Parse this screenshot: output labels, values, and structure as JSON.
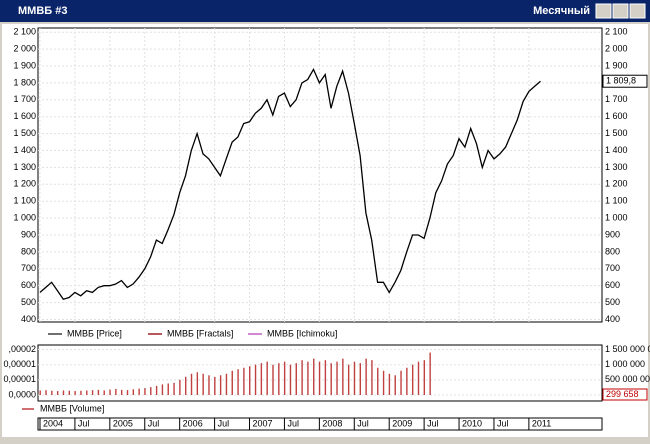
{
  "window": {
    "title": "ММВБ #3",
    "period": "Месячный"
  },
  "chart_data": {
    "type": "line",
    "x_labels": [
      "2004",
      "Jul",
      "2005",
      "Jul",
      "2006",
      "Jul",
      "2007",
      "Jul",
      "2008",
      "Jul",
      "2009",
      "Jul",
      "2010",
      "Jul",
      "2011"
    ],
    "series": [
      {
        "name": "ММВБ [Price]",
        "color": "#000000",
        "values": [
          560,
          590,
          620,
          570,
          520,
          530,
          560,
          540,
          570,
          560,
          590,
          600,
          600,
          610,
          630,
          590,
          610,
          650,
          700,
          770,
          870,
          850,
          930,
          1020,
          1150,
          1250,
          1400,
          1500,
          1380,
          1350,
          1300,
          1250,
          1350,
          1450,
          1480,
          1560,
          1570,
          1620,
          1650,
          1700,
          1610,
          1720,
          1740,
          1660,
          1700,
          1800,
          1820,
          1880,
          1800,
          1850,
          1650,
          1780,
          1870,
          1740,
          1560,
          1370,
          1030,
          870,
          620,
          620,
          560,
          620,
          690,
          800,
          900,
          900,
          880,
          1000,
          1150,
          1220,
          1320,
          1370,
          1470,
          1420,
          1530,
          1440,
          1300,
          1400,
          1350,
          1380,
          1420,
          1500,
          1580,
          1690,
          1750,
          1780,
          1810
        ]
      }
    ],
    "legend": [
      "ММВБ [Price]",
      "ММВБ [Fractals]",
      "ММВБ [Ichimoku]"
    ],
    "legend_colors": [
      "#404040",
      "#a02020",
      "#c060c0"
    ],
    "last_value_label": "1 809,8",
    "ylim": [
      385,
      2125
    ],
    "yticks": [
      {
        "value": 2100,
        "label": "2 100"
      },
      {
        "value": 2000,
        "label": "2 000"
      },
      {
        "value": 1900,
        "label": "1 900"
      },
      {
        "value": 1800,
        "label": "1 800"
      },
      {
        "value": 1700,
        "label": "1 700"
      },
      {
        "value": 1600,
        "label": "1 600"
      },
      {
        "value": 1500,
        "label": "1 500"
      },
      {
        "value": 1400,
        "label": "1 400"
      },
      {
        "value": 1300,
        "label": "1 300"
      },
      {
        "value": 1200,
        "label": "1 200"
      },
      {
        "value": 1100,
        "label": "1 100"
      },
      {
        "value": 1000,
        "label": "1 000"
      },
      900,
      800,
      700,
      600,
      500,
      400
    ],
    "grid": true
  },
  "volume": {
    "type": "bar",
    "name": "ММВБ [Volume]",
    "color": "#c04040",
    "values": [
      150000000,
      160000000,
      140000000,
      130000000,
      150000000,
      140000000,
      130000000,
      140000000,
      150000000,
      160000000,
      170000000,
      150000000,
      180000000,
      200000000,
      170000000,
      160000000,
      190000000,
      210000000,
      230000000,
      260000000,
      300000000,
      350000000,
      380000000,
      400000000,
      500000000,
      600000000,
      700000000,
      750000000,
      700000000,
      650000000,
      600000000,
      650000000,
      700000000,
      800000000,
      850000000,
      900000000,
      950000000,
      1000000000,
      1050000000,
      1100000000,
      1000000000,
      1050000000,
      1100000000,
      1000000000,
      1050000000,
      1150000000,
      1100000000,
      1200000000,
      1100000000,
      1150000000,
      1050000000,
      1100000000,
      1200000000,
      1000000000,
      1100000000,
      1050000000,
      1200000000,
      1150000000,
      900000000,
      800000000,
      700000000,
      650000000,
      800000000,
      900000000,
      1000000000,
      1100000000,
      1150000000,
      1400000000,
      null,
      null,
      null,
      null,
      null,
      null,
      null,
      null,
      null,
      null,
      null,
      null,
      null,
      null,
      null,
      null,
      null,
      null,
      null
    ],
    "ylim": [
      0,
      1650000000
    ],
    "yticks": [
      {
        "value": 1500000000,
        "label": "1 500 000 0"
      },
      {
        "value": 1000000000,
        "label": "1 000 000"
      },
      {
        "value": 500000000,
        "label": "500 000 000"
      },
      0
    ],
    "left_labels": [
      ",00002",
      "0,00001",
      "0,00001",
      "0,0000"
    ],
    "last_value_label": "299 658"
  }
}
